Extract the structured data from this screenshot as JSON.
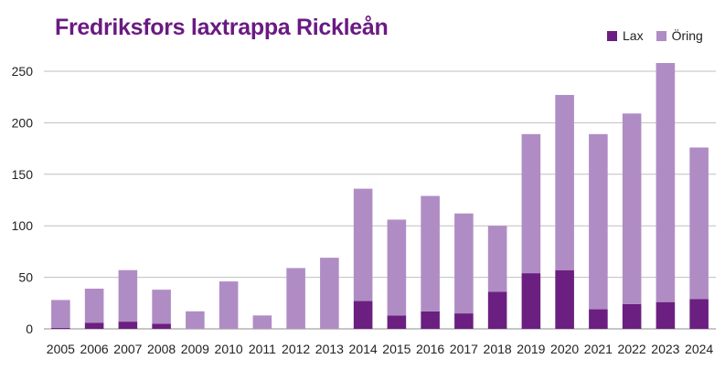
{
  "chart_data": {
    "type": "bar",
    "stacked": true,
    "title": "Fredriksfors laxtrappa Rickleån",
    "xlabel": "",
    "ylabel": "",
    "ylim": [
      0,
      260
    ],
    "yticks": [
      0,
      50,
      100,
      150,
      200,
      250
    ],
    "grid": true,
    "legend_position": "top-right",
    "categories": [
      "2005",
      "2006",
      "2007",
      "2008",
      "2009",
      "2010",
      "2011",
      "2012",
      "2013",
      "2014",
      "2015",
      "2016",
      "2017",
      "2018",
      "2019",
      "2020",
      "2021",
      "2022",
      "2023",
      "2024"
    ],
    "series": [
      {
        "name": "Lax",
        "color": "#6b1f80",
        "values": [
          1,
          6,
          7,
          5,
          0,
          0,
          0,
          0,
          0,
          27,
          13,
          17,
          15,
          36,
          54,
          57,
          19,
          24,
          26,
          29
        ]
      },
      {
        "name": "Öring",
        "color": "#b08cc4",
        "values": [
          27,
          33,
          50,
          33,
          17,
          46,
          13,
          59,
          69,
          109,
          93,
          112,
          97,
          64,
          135,
          170,
          170,
          185,
          232,
          147
        ]
      }
    ]
  }
}
